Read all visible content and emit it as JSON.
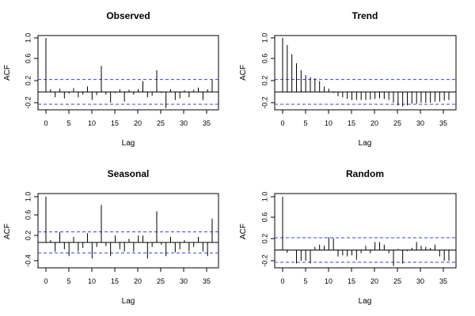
{
  "chart_data": [
    {
      "type": "bar",
      "title": "Observed",
      "xlabel": "Lag",
      "ylabel": "ACF",
      "xlim": [
        0,
        36
      ],
      "ylim": [
        -0.3,
        1.0
      ],
      "xticks": [
        "0",
        "5",
        "10",
        "15",
        "20",
        "25",
        "30",
        "35"
      ],
      "yticks": [
        "-0.2",
        "0.2",
        "0.6",
        "1.0"
      ],
      "ci": 0.23,
      "lags": [
        0,
        1,
        2,
        3,
        4,
        5,
        6,
        7,
        8,
        9,
        10,
        11,
        12,
        13,
        14,
        15,
        16,
        17,
        18,
        19,
        20,
        21,
        22,
        23,
        24,
        25,
        26,
        27,
        28,
        29,
        30,
        31,
        32,
        33,
        34,
        35,
        36
      ],
      "values": [
        1.0,
        0.05,
        -0.1,
        0.06,
        -0.12,
        -0.03,
        0.07,
        -0.1,
        -0.05,
        0.1,
        -0.15,
        -0.06,
        0.48,
        -0.05,
        -0.2,
        -0.02,
        0.05,
        -0.18,
        0.04,
        -0.05,
        0.05,
        0.2,
        -0.1,
        -0.07,
        0.4,
        -0.02,
        -0.3,
        0.05,
        -0.15,
        -0.12,
        0.03,
        -0.1,
        0.04,
        0.08,
        -0.15,
        0.05,
        0.22
      ]
    },
    {
      "type": "bar",
      "title": "Trend",
      "xlabel": "Lag",
      "ylabel": "ACF",
      "xlim": [
        0,
        36
      ],
      "ylim": [
        -0.3,
        1.0
      ],
      "xticks": [
        "0",
        "5",
        "10",
        "15",
        "20",
        "25",
        "30",
        "35"
      ],
      "yticks": [
        "-0.2",
        "0.2",
        "0.6",
        "1.0"
      ],
      "ci": 0.23,
      "lags": [
        0,
        1,
        2,
        3,
        4,
        5,
        6,
        7,
        8,
        9,
        10,
        11,
        12,
        13,
        14,
        15,
        16,
        17,
        18,
        19,
        20,
        21,
        22,
        23,
        24,
        25,
        26,
        27,
        28,
        29,
        30,
        31,
        32,
        33,
        34,
        35,
        36
      ],
      "values": [
        1.0,
        0.87,
        0.7,
        0.53,
        0.4,
        0.31,
        0.27,
        0.25,
        0.2,
        0.1,
        0.06,
        -0.02,
        -0.08,
        -0.1,
        -0.13,
        -0.15,
        -0.15,
        -0.15,
        -0.15,
        -0.14,
        -0.13,
        -0.12,
        -0.13,
        -0.15,
        -0.2,
        -0.25,
        -0.27,
        -0.25,
        -0.22,
        -0.22,
        -0.2,
        -0.2,
        -0.2,
        -0.18,
        -0.18,
        -0.16,
        -0.15
      ]
    },
    {
      "type": "bar",
      "title": "Seasonal",
      "xlabel": "Lag",
      "ylabel": "ACF",
      "xlim": [
        0,
        36
      ],
      "ylim": [
        -0.4,
        1.0
      ],
      "xticks": [
        "0",
        "5",
        "10",
        "15",
        "20",
        "25",
        "30",
        "35"
      ],
      "yticks": [
        "-0.4",
        "0.2",
        "0.6",
        "1.0"
      ],
      "ci": 0.23,
      "lags": [
        0,
        1,
        2,
        3,
        4,
        5,
        6,
        7,
        8,
        9,
        10,
        11,
        12,
        13,
        14,
        15,
        16,
        17,
        18,
        19,
        20,
        21,
        22,
        23,
        24,
        25,
        26,
        27,
        28,
        29,
        30,
        31,
        32,
        33,
        34,
        35,
        36
      ],
      "values": [
        1.0,
        0.05,
        -0.2,
        0.22,
        -0.15,
        -0.3,
        0.12,
        -0.2,
        -0.12,
        0.2,
        -0.35,
        -0.1,
        0.82,
        -0.08,
        -0.3,
        0.15,
        -0.15,
        -0.2,
        0.08,
        -0.2,
        0.15,
        0.15,
        -0.35,
        -0.1,
        0.68,
        -0.05,
        -0.3,
        0.12,
        -0.22,
        -0.15,
        0.05,
        -0.2,
        -0.1,
        0.12,
        -0.2,
        -0.3,
        0.52
      ]
    },
    {
      "type": "bar",
      "title": "Random",
      "xlabel": "Lag",
      "ylabel": "ACF",
      "xlim": [
        0,
        36
      ],
      "ylim": [
        -0.3,
        1.0
      ],
      "xticks": [
        "0",
        "5",
        "10",
        "15",
        "20",
        "25",
        "30",
        "35"
      ],
      "yticks": [
        "-0.2",
        "0.2",
        "0.6",
        "1.0"
      ],
      "ci": 0.23,
      "lags": [
        0,
        1,
        2,
        3,
        4,
        5,
        6,
        7,
        8,
        9,
        10,
        11,
        12,
        13,
        14,
        15,
        16,
        17,
        18,
        19,
        20,
        21,
        22,
        23,
        24,
        25,
        26,
        27,
        28,
        29,
        30,
        31,
        32,
        33,
        34,
        35,
        36
      ],
      "values": [
        1.0,
        -0.05,
        0.0,
        -0.25,
        -0.2,
        -0.2,
        -0.25,
        0.06,
        0.1,
        0.08,
        0.24,
        0.22,
        -0.12,
        -0.1,
        -0.12,
        -0.1,
        -0.18,
        -0.06,
        0.08,
        -0.06,
        0.15,
        0.15,
        0.1,
        -0.06,
        -0.3,
        0.02,
        -0.25,
        -0.02,
        0.04,
        0.15,
        0.08,
        0.06,
        0.04,
        0.1,
        -0.12,
        -0.2,
        -0.2
      ]
    }
  ]
}
